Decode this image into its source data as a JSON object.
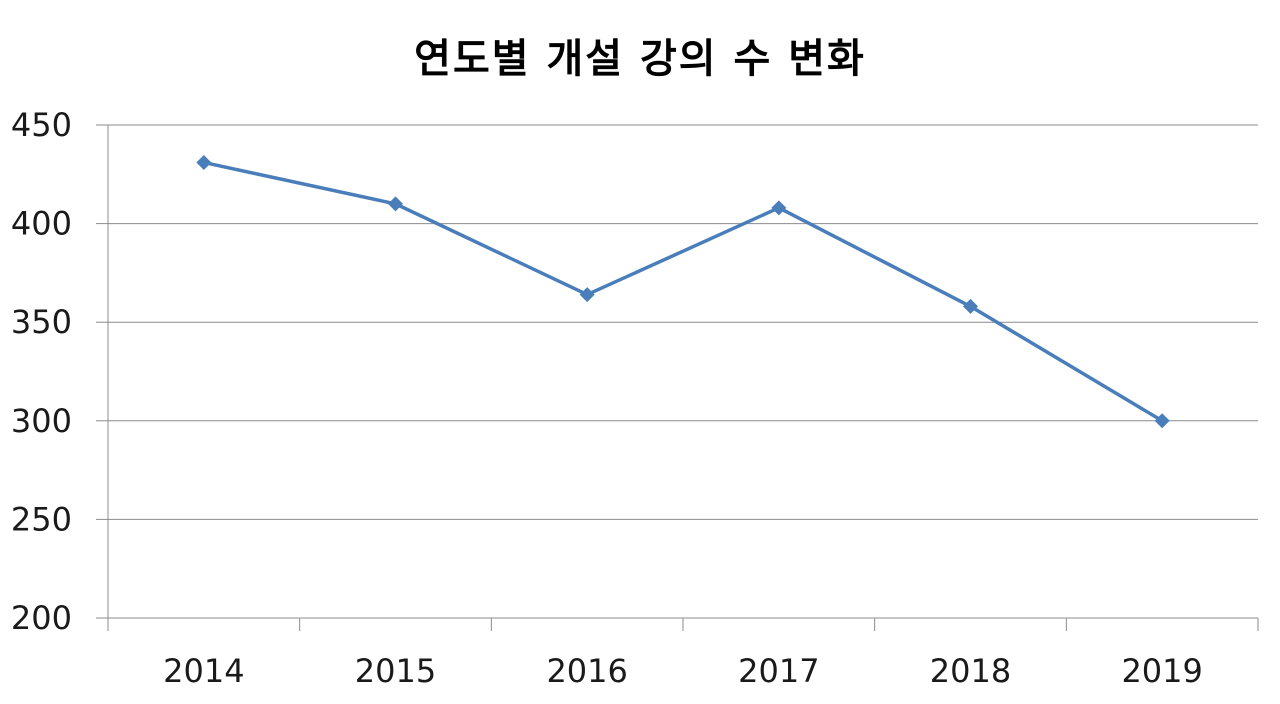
{
  "chart_data": {
    "type": "line",
    "title": "연도별 개설 강의 수 변화",
    "xlabel": "",
    "ylabel": "",
    "categories": [
      "2014",
      "2015",
      "2016",
      "2017",
      "2018",
      "2019"
    ],
    "series": [
      {
        "values": [
          431,
          410,
          364,
          408,
          358,
          300
        ]
      }
    ],
    "ylim": [
      200,
      450
    ],
    "yticks": [
      200,
      250,
      300,
      350,
      400,
      450
    ],
    "grid": true,
    "legend": "none",
    "colors": {
      "line": "#4a7ebb",
      "grid": "#8c8c8c",
      "axis": "#8c8c8c"
    }
  }
}
